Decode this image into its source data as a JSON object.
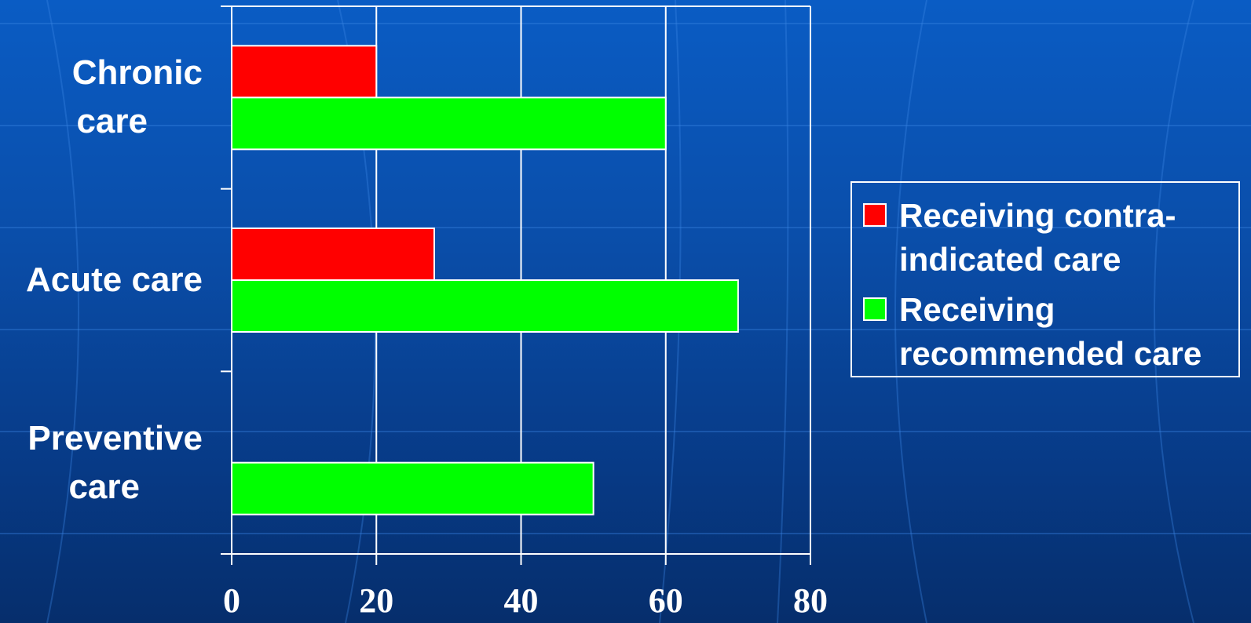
{
  "chart_data": {
    "type": "bar",
    "orientation": "horizontal",
    "categories": [
      "Chronic care",
      "Acute care",
      "Preventive care"
    ],
    "category_label_lines": [
      [
        "Chronic",
        "care"
      ],
      [
        "Acute care"
      ],
      [
        "Preventive",
        "care"
      ]
    ],
    "series": [
      {
        "name": "Receiving contra-indicated care",
        "legend_lines": [
          "Receiving contra-",
          "indicated care"
        ],
        "color": "#ff0000",
        "values": [
          20,
          28,
          null
        ]
      },
      {
        "name": "Receiving recommended care",
        "legend_lines": [
          "Receiving",
          "recommended care"
        ],
        "color": "#00ff00",
        "values": [
          60,
          70,
          50
        ]
      }
    ],
    "xlim": [
      0,
      80
    ],
    "xticks": [
      0,
      20,
      40,
      60,
      80
    ],
    "grid": true,
    "legend_position": "right"
  }
}
